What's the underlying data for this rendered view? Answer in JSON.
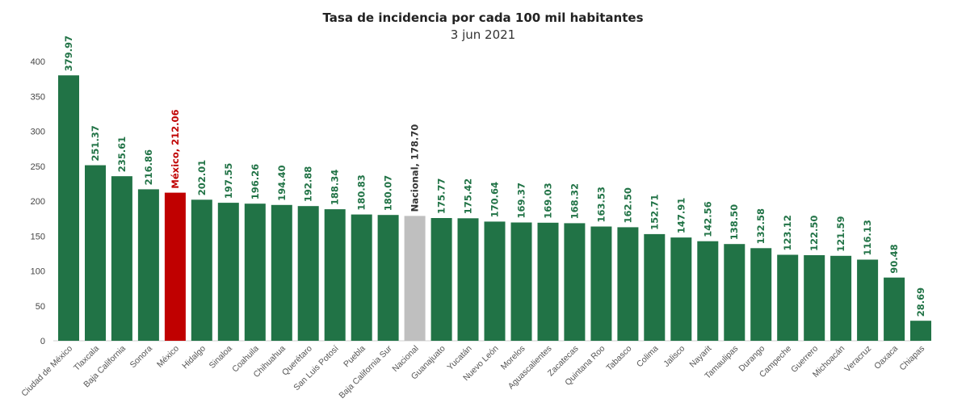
{
  "chart_data": {
    "type": "bar",
    "title": "Tasa de incidencia por cada 100 mil habitantes",
    "subtitle": "3 jun 2021",
    "xlabel": "",
    "ylabel": "",
    "ylim": [
      0,
      400
    ],
    "yticks": [
      0,
      50,
      100,
      150,
      200,
      250,
      300,
      350,
      400
    ],
    "grid": false,
    "categories": [
      "Ciudad de México",
      "Tlaxcala",
      "Baja California",
      "Sonora",
      "México",
      "Hidalgo",
      "Sinaloa",
      "Coahuila",
      "Chihuahua",
      "Querétaro",
      "San Luis Potosí",
      "Puebla",
      "Baja California Sur",
      "Nacional",
      "Guanajuato",
      "Yucatán",
      "Nuevo León",
      "Morelos",
      "Aguascalientes",
      "Zacatecas",
      "Quintana Roo",
      "Tabasco",
      "Colima",
      "Jalisco",
      "Nayarit",
      "Tamaulipas",
      "Durango",
      "Campeche",
      "Guerrero",
      "Michoacán",
      "Veracruz",
      "Oaxaca",
      "Chiapas"
    ],
    "values": [
      379.97,
      251.37,
      235.61,
      216.86,
      212.06,
      202.01,
      197.55,
      196.26,
      194.4,
      192.88,
      188.34,
      180.83,
      180.07,
      178.7,
      175.77,
      175.42,
      170.64,
      169.37,
      169.03,
      168.32,
      163.53,
      162.5,
      152.71,
      147.91,
      142.56,
      138.5,
      132.58,
      123.12,
      122.5,
      121.59,
      116.13,
      90.48,
      28.69
    ],
    "value_labels": [
      "379.97",
      "251.37",
      "235.61",
      "216.86",
      "México, 212.06",
      "202.01",
      "197.55",
      "196.26",
      "194.40",
      "192.88",
      "188.34",
      "180.83",
      "180.07",
      "Nacional, 178.70",
      "175.77",
      "175.42",
      "170.64",
      "169.37",
      "169.03",
      "168.32",
      "163.53",
      "162.50",
      "152.71",
      "147.91",
      "142.56",
      "138.50",
      "132.58",
      "123.12",
      "122.50",
      "121.59",
      "116.13",
      "90.48",
      "28.69"
    ],
    "highlights": {
      "México": "#c00000",
      "Nacional": "#bfbfbf"
    },
    "colors": {
      "bar": "#217346",
      "label": "#217346",
      "highlight_label_mexico": "#c00000",
      "highlight_label_nacional": "#333333"
    }
  }
}
